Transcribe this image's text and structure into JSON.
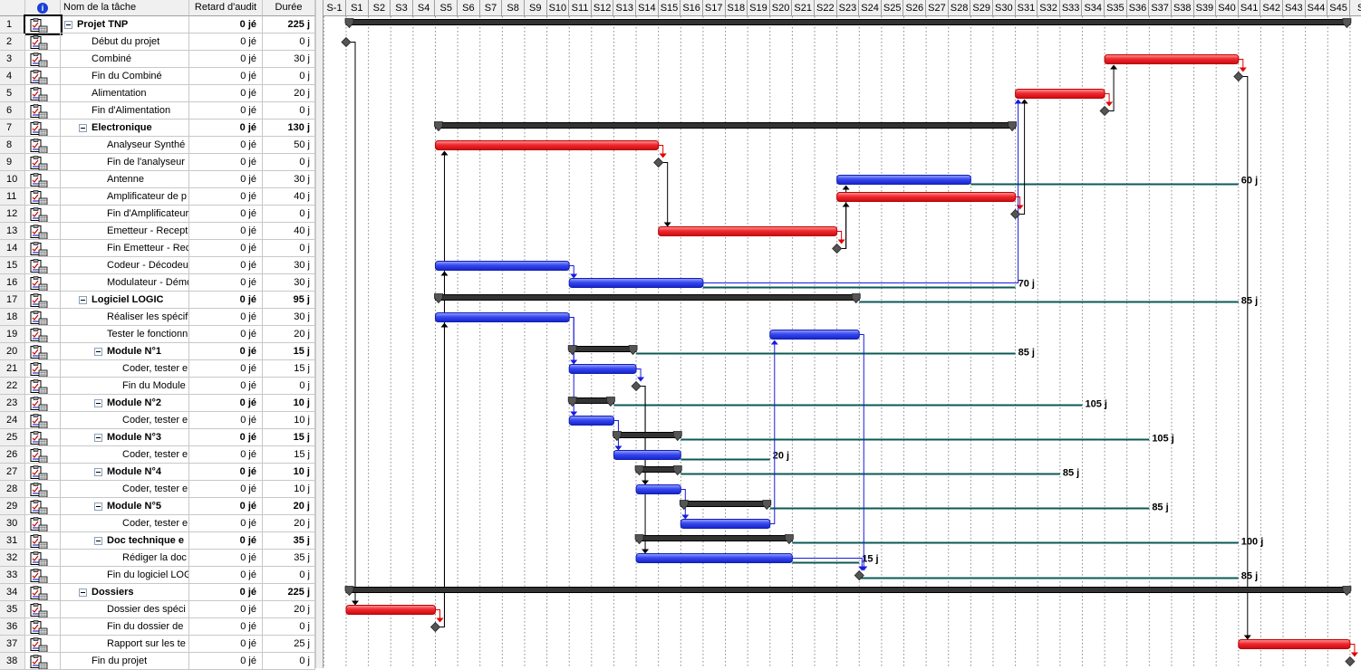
{
  "table": {
    "headers": {
      "info": "i",
      "name": "Nom de la tâche",
      "audit": "Retard d'audit",
      "duration": "Durée"
    },
    "tasks": [
      {
        "id": "1",
        "name": "Projet TNP",
        "audit": "0 jé",
        "duration": "225 j",
        "level": 0,
        "summary": true,
        "critical": false,
        "start": 0,
        "days": 225,
        "milestone": false
      },
      {
        "id": "2",
        "name": "Début du projet",
        "audit": "0 jé",
        "duration": "0 j",
        "level": 1,
        "summary": false,
        "critical": true,
        "start": 0,
        "days": 0,
        "milestone": true
      },
      {
        "id": "3",
        "name": "Combiné",
        "audit": "0 jé",
        "duration": "30 j",
        "level": 1,
        "summary": false,
        "critical": true,
        "start": 170,
        "days": 30,
        "milestone": false
      },
      {
        "id": "4",
        "name": "Fin du Combiné",
        "audit": "0 jé",
        "duration": "0 j",
        "level": 1,
        "summary": false,
        "critical": true,
        "start": 200,
        "days": 0,
        "milestone": true
      },
      {
        "id": "5",
        "name": "Alimentation",
        "audit": "0 jé",
        "duration": "20 j",
        "level": 1,
        "summary": false,
        "critical": true,
        "start": 150,
        "days": 20,
        "milestone": false
      },
      {
        "id": "6",
        "name": "Fin d'Alimentation",
        "audit": "0 jé",
        "duration": "0 j",
        "level": 1,
        "summary": false,
        "critical": true,
        "start": 170,
        "days": 0,
        "milestone": true
      },
      {
        "id": "7",
        "name": "Electronique",
        "audit": "0 jé",
        "duration": "130 j",
        "level": 1,
        "summary": true,
        "critical": false,
        "start": 20,
        "days": 130,
        "milestone": false
      },
      {
        "id": "8",
        "name": "Analyseur Synthé",
        "audit": "0 jé",
        "duration": "50 j",
        "level": 2,
        "summary": false,
        "critical": true,
        "start": 20,
        "days": 50,
        "milestone": false
      },
      {
        "id": "9",
        "name": "Fin de l'analyseur",
        "audit": "0 jé",
        "duration": "0 j",
        "level": 2,
        "summary": false,
        "critical": true,
        "start": 70,
        "days": 0,
        "milestone": true
      },
      {
        "id": "10",
        "name": "Antenne",
        "audit": "0 jé",
        "duration": "30 j",
        "level": 2,
        "summary": false,
        "critical": false,
        "start": 110,
        "days": 30,
        "milestone": false,
        "slack": 60,
        "slack_label": "60 j"
      },
      {
        "id": "11",
        "name": "Amplificateur de p",
        "audit": "0 jé",
        "duration": "40 j",
        "level": 2,
        "summary": false,
        "critical": true,
        "start": 110,
        "days": 40,
        "milestone": false
      },
      {
        "id": "12",
        "name": "Fin d'Amplificateur",
        "audit": "0 jé",
        "duration": "0 j",
        "level": 2,
        "summary": false,
        "critical": true,
        "start": 150,
        "days": 0,
        "milestone": true
      },
      {
        "id": "13",
        "name": "Emetteur - Recept",
        "audit": "0 jé",
        "duration": "40 j",
        "level": 2,
        "summary": false,
        "critical": true,
        "start": 70,
        "days": 40,
        "milestone": false
      },
      {
        "id": "14",
        "name": "Fin Emetteur - Rec",
        "audit": "0 jé",
        "duration": "0 j",
        "level": 2,
        "summary": false,
        "critical": true,
        "start": 110,
        "days": 0,
        "milestone": true
      },
      {
        "id": "15",
        "name": "Codeur - Décodeu",
        "audit": "0 jé",
        "duration": "30 j",
        "level": 2,
        "summary": false,
        "critical": false,
        "start": 20,
        "days": 30,
        "milestone": false
      },
      {
        "id": "16",
        "name": "Modulateur - Démo",
        "audit": "0 jé",
        "duration": "30 j",
        "level": 2,
        "summary": false,
        "critical": false,
        "start": 50,
        "days": 30,
        "milestone": false,
        "slack": 70,
        "slack_label": "70 j"
      },
      {
        "id": "17",
        "name": "Logiciel LOGIC",
        "audit": "0 jé",
        "duration": "95 j",
        "level": 1,
        "summary": true,
        "critical": false,
        "start": 20,
        "days": 95,
        "milestone": false,
        "slack": 85,
        "slack_label": "85 j"
      },
      {
        "id": "18",
        "name": "Réaliser les spécif",
        "audit": "0 jé",
        "duration": "30 j",
        "level": 2,
        "summary": false,
        "critical": false,
        "start": 20,
        "days": 30,
        "milestone": false
      },
      {
        "id": "19",
        "name": "Tester le fonctionn",
        "audit": "0 jé",
        "duration": "20 j",
        "level": 2,
        "summary": false,
        "critical": false,
        "start": 95,
        "days": 20,
        "milestone": false
      },
      {
        "id": "20",
        "name": "Module N°1",
        "audit": "0 jé",
        "duration": "15 j",
        "level": 2,
        "summary": true,
        "critical": false,
        "start": 50,
        "days": 15,
        "milestone": false,
        "slack": 85,
        "slack_label": "85 j"
      },
      {
        "id": "21",
        "name": "Coder, tester e",
        "audit": "0 jé",
        "duration": "15 j",
        "level": 3,
        "summary": false,
        "critical": false,
        "start": 50,
        "days": 15,
        "milestone": false
      },
      {
        "id": "22",
        "name": "Fin du Module",
        "audit": "0 jé",
        "duration": "0 j",
        "level": 3,
        "summary": false,
        "critical": false,
        "start": 65,
        "days": 0,
        "milestone": true
      },
      {
        "id": "23",
        "name": "Module N°2",
        "audit": "0 jé",
        "duration": "10 j",
        "level": 2,
        "summary": true,
        "critical": false,
        "start": 50,
        "days": 10,
        "milestone": false,
        "slack": 105,
        "slack_label": "105 j"
      },
      {
        "id": "24",
        "name": "Coder, tester e",
        "audit": "0 jé",
        "duration": "10 j",
        "level": 3,
        "summary": false,
        "critical": false,
        "start": 50,
        "days": 10,
        "milestone": false
      },
      {
        "id": "25",
        "name": "Module N°3",
        "audit": "0 jé",
        "duration": "15 j",
        "level": 2,
        "summary": true,
        "critical": false,
        "start": 60,
        "days": 15,
        "milestone": false,
        "slack": 105,
        "slack_label": "105 j"
      },
      {
        "id": "26",
        "name": "Coder, tester e",
        "audit": "0 jé",
        "duration": "15 j",
        "level": 3,
        "summary": false,
        "critical": false,
        "start": 60,
        "days": 15,
        "milestone": false,
        "slack": 20,
        "slack_label": "20 j"
      },
      {
        "id": "27",
        "name": "Module N°4",
        "audit": "0 jé",
        "duration": "10 j",
        "level": 2,
        "summary": true,
        "critical": false,
        "start": 65,
        "days": 10,
        "milestone": false,
        "slack": 85,
        "slack_label": "85 j"
      },
      {
        "id": "28",
        "name": "Coder, tester e",
        "audit": "0 jé",
        "duration": "10 j",
        "level": 3,
        "summary": false,
        "critical": false,
        "start": 65,
        "days": 10,
        "milestone": false
      },
      {
        "id": "29",
        "name": "Module N°5",
        "audit": "0 jé",
        "duration": "20 j",
        "level": 2,
        "summary": true,
        "critical": false,
        "start": 75,
        "days": 20,
        "milestone": false,
        "slack": 85,
        "slack_label": "85 j"
      },
      {
        "id": "30",
        "name": "Coder, tester e",
        "audit": "0 jé",
        "duration": "20 j",
        "level": 3,
        "summary": false,
        "critical": false,
        "start": 75,
        "days": 20,
        "milestone": false
      },
      {
        "id": "31",
        "name": "Doc technique e",
        "audit": "0 jé",
        "duration": "35 j",
        "level": 2,
        "summary": true,
        "critical": false,
        "start": 65,
        "days": 35,
        "milestone": false,
        "slack": 100,
        "slack_label": "100 j"
      },
      {
        "id": "32",
        "name": "Rédiger la doc",
        "audit": "0 jé",
        "duration": "35 j",
        "level": 3,
        "summary": false,
        "critical": false,
        "start": 65,
        "days": 35,
        "milestone": false,
        "slack": 15,
        "slack_label": "15 j"
      },
      {
        "id": "33",
        "name": "Fin du logiciel LOG",
        "audit": "0 jé",
        "duration": "0 j",
        "level": 2,
        "summary": false,
        "critical": false,
        "start": 115,
        "days": 0,
        "milestone": true,
        "slack": 85,
        "slack_label": "85 j"
      },
      {
        "id": "34",
        "name": "Dossiers",
        "audit": "0 jé",
        "duration": "225 j",
        "level": 1,
        "summary": true,
        "critical": false,
        "start": 0,
        "days": 225,
        "milestone": false
      },
      {
        "id": "35",
        "name": "Dossier des spéci",
        "audit": "0 jé",
        "duration": "20 j",
        "level": 2,
        "summary": false,
        "critical": true,
        "start": 0,
        "days": 20,
        "milestone": false
      },
      {
        "id": "36",
        "name": "Fin du dossier de",
        "audit": "0 jé",
        "duration": "0 j",
        "level": 2,
        "summary": false,
        "critical": true,
        "start": 20,
        "days": 0,
        "milestone": true
      },
      {
        "id": "37",
        "name": "Rapport sur les te",
        "audit": "0 jé",
        "duration": "25 j",
        "level": 2,
        "summary": false,
        "critical": true,
        "start": 200,
        "days": 25,
        "milestone": false
      },
      {
        "id": "38",
        "name": "Fin du projet",
        "audit": "0 jé",
        "duration": "0 j",
        "level": 1,
        "summary": false,
        "critical": true,
        "start": 225,
        "days": 0,
        "milestone": true
      }
    ]
  },
  "timescale": {
    "unit_days": 5,
    "weeks": [
      "S-1",
      "S1",
      "S2",
      "S3",
      "S4",
      "S5",
      "S6",
      "S7",
      "S8",
      "S9",
      "S10",
      "S11",
      "S12",
      "S13",
      "S14",
      "S15",
      "S16",
      "S17",
      "S18",
      "S19",
      "S20",
      "S21",
      "S22",
      "S23",
      "S24",
      "S25",
      "S26",
      "S27",
      "S28",
      "S29",
      "S30",
      "S31",
      "S32",
      "S33",
      "S34",
      "S35",
      "S36",
      "S37",
      "S38",
      "S39",
      "S40",
      "S41",
      "S42",
      "S43",
      "S44",
      "S45",
      "S"
    ]
  },
  "links": [
    [
      2,
      35
    ],
    [
      35,
      36
    ],
    [
      36,
      8
    ],
    [
      36,
      15
    ],
    [
      36,
      18
    ],
    [
      8,
      9
    ],
    [
      9,
      13
    ],
    [
      13,
      14
    ],
    [
      14,
      10
    ],
    [
      14,
      11
    ],
    [
      11,
      12
    ],
    [
      12,
      5
    ],
    [
      16,
      5
    ],
    [
      5,
      6
    ],
    [
      6,
      3
    ],
    [
      3,
      4
    ],
    [
      4,
      37
    ],
    [
      37,
      38
    ],
    [
      15,
      16
    ],
    [
      18,
      21
    ],
    [
      18,
      24
    ],
    [
      21,
      22
    ],
    [
      22,
      28
    ],
    [
      22,
      32
    ],
    [
      24,
      26
    ],
    [
      28,
      30
    ],
    [
      30,
      19
    ],
    [
      19,
      33
    ],
    [
      32,
      33
    ]
  ],
  "colors": {
    "critical": "#e8242c",
    "normal": "#3340e8",
    "summary": "#333333",
    "slack": "#0b5a55",
    "milestone": "#555555",
    "link_critical": "#e00000",
    "link_normal": "#1a1ae0",
    "link_other": "#000000"
  }
}
